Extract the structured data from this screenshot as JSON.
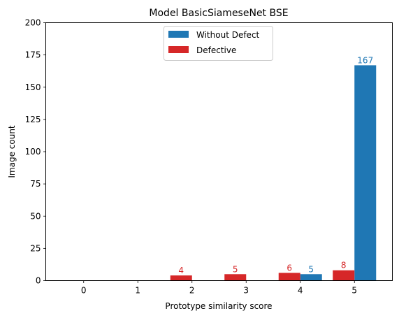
{
  "chart_data": {
    "type": "bar",
    "title": "Model BasicSiameseNet BSE",
    "xlabel": "Prototype similarity score",
    "ylabel": "Image count",
    "categories": [
      "0",
      "1",
      "2",
      "3",
      "4",
      "5"
    ],
    "ylim": [
      0,
      200
    ],
    "yticks": [
      0,
      25,
      50,
      75,
      100,
      125,
      150,
      175,
      200
    ],
    "legend_position": "top-center",
    "grid": false,
    "series": [
      {
        "name": "Without Defect",
        "color": "#1f77b4",
        "values": [
          0,
          0,
          0,
          0,
          5,
          167
        ],
        "labels": [
          "",
          "",
          "",
          "",
          "5",
          "167"
        ]
      },
      {
        "name": "Defective",
        "color": "#d62728",
        "values": [
          0,
          0,
          4,
          5,
          6,
          8
        ],
        "labels": [
          "",
          "",
          "4",
          "5",
          "6",
          "8"
        ]
      }
    ]
  }
}
